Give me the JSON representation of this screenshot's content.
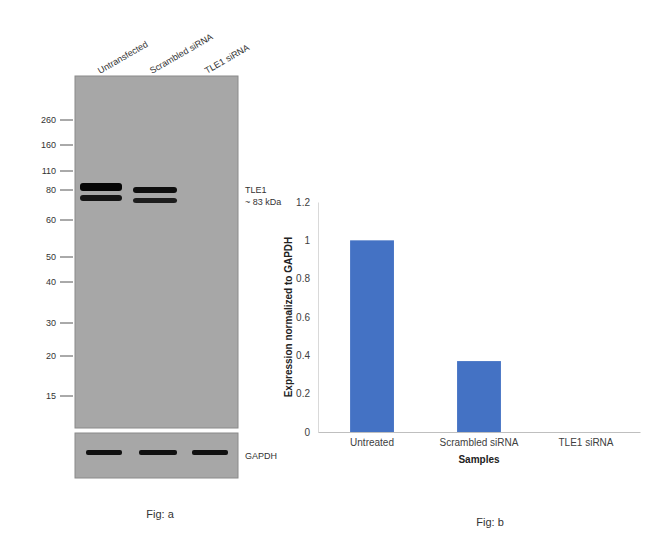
{
  "blot": {
    "lanes": [
      "Untransfected",
      "Scrambled siRNA",
      "TLE1 siRNA"
    ],
    "markers": [
      260,
      160,
      110,
      80,
      60,
      50,
      40,
      30,
      20,
      15
    ],
    "target": "TLE1",
    "target_size": "~ 83 kDa",
    "loading_control": "GAPDH",
    "caption": "Fig: a"
  },
  "chart_data": {
    "type": "bar",
    "categories": [
      "Untreated",
      "Scrambled siRNA",
      "TLE1 siRNA"
    ],
    "values": [
      1,
      0.37,
      0
    ],
    "color": "#4472c4",
    "ylim": [
      0,
      1.2
    ],
    "yticks": [
      0,
      0.2,
      0.4,
      0.6,
      0.8,
      1,
      1.2
    ],
    "grid": false,
    "x_label": "Samples",
    "y_label": "Expression normalized to GAPDH",
    "annotations": [
      "Fig: b"
    ]
  }
}
